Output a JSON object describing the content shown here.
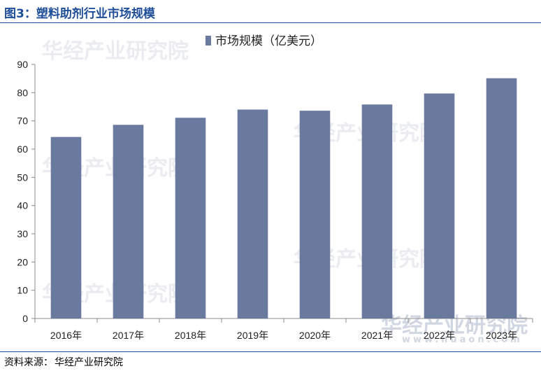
{
  "header": {
    "title": "图3：塑料助剂行业市场规模"
  },
  "footer": {
    "source_label": "资料来源：",
    "source_value": "华经产业研究院"
  },
  "watermark": {
    "text": "华经产业研究院",
    "url": "www.huaon.com"
  },
  "chart_data": {
    "type": "bar",
    "categories": [
      "2016年",
      "2017年",
      "2018年",
      "2019年",
      "2020年",
      "2021年",
      "2022年",
      "2023年"
    ],
    "series": [
      {
        "name": "市场规模（亿美元）",
        "values": [
          64.3,
          68.6,
          71.1,
          74.0,
          73.6,
          75.8,
          79.7,
          85.1
        ]
      }
    ],
    "ylim": [
      0,
      90
    ],
    "yticks": [
      0,
      10,
      20,
      30,
      40,
      50,
      60,
      70,
      80,
      90
    ],
    "legend_position": "top",
    "grid": false,
    "colors": {
      "bar": "#6a7a9e",
      "axis": "#8c8c8c"
    }
  }
}
